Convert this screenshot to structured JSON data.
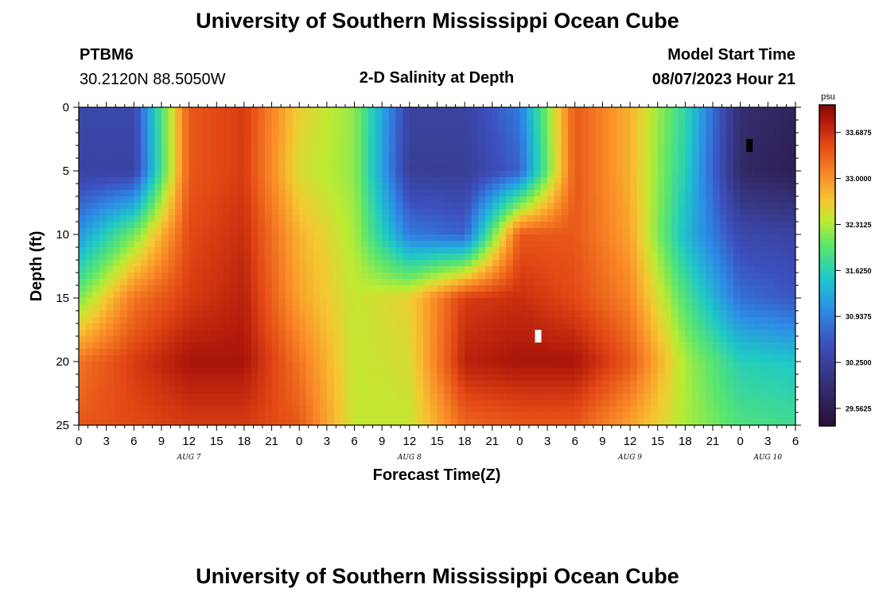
{
  "page": {
    "title_top": "University of Southern Mississippi Ocean Cube",
    "title_bottom": "University of Southern Mississippi Ocean Cube",
    "station_id": "PTBM6",
    "station_coords": "30.2120N  88.5050W",
    "plot_title": "2-D Salinity at Depth",
    "model_start_label": "Model Start Time",
    "model_start_value": "08/07/2023 Hour 21"
  },
  "chart_data": {
    "type": "heatmap",
    "title": "2-D Salinity at Depth",
    "xlabel": "Forecast Time(Z)",
    "ylabel": "Depth (ft)",
    "x_range_hours": [
      0,
      78
    ],
    "y_range_ft": [
      0,
      25
    ],
    "y_inverted": true,
    "x_tick_labels": [
      "0",
      "3",
      "6",
      "9",
      "12",
      "15",
      "18",
      "21",
      "0",
      "3",
      "6",
      "9",
      "12",
      "15",
      "18",
      "21",
      "0",
      "3",
      "6",
      "9",
      "12",
      "15",
      "18",
      "21",
      "0",
      "3",
      "6"
    ],
    "y_ticks": [
      0,
      5,
      10,
      15,
      20,
      25
    ],
    "day_labels": [
      {
        "label": "AUG 7",
        "hour": 12
      },
      {
        "label": "AUG 8",
        "hour": 36
      },
      {
        "label": "AUG 9",
        "hour": 60
      },
      {
        "label": "AUG 10",
        "hour": 75
      }
    ],
    "colorbar": {
      "unit": "psu",
      "range": [
        29.3,
        34.1
      ],
      "ticks": [
        33.6875,
        33.0,
        32.3125,
        31.625,
        30.9375,
        30.25,
        29.5625
      ],
      "tick_labels": [
        "33.6875",
        "33.0000",
        "32.3125",
        "31.6250",
        "30.9375",
        "30.2500",
        "29.5625"
      ]
    },
    "grid": {
      "times_hours": [
        0,
        6,
        12,
        18,
        24,
        30,
        36,
        42,
        48,
        54,
        60,
        66,
        72,
        78
      ],
      "depths_ft": [
        0,
        5,
        10,
        15,
        20,
        25
      ],
      "salinity_psu": [
        [
          30.4,
          30.4,
          33.4,
          33.6,
          32.6,
          32.2,
          30.3,
          30.3,
          30.9,
          33.4,
          32.8,
          31.7,
          29.9,
          29.7
        ],
        [
          30.3,
          30.3,
          33.4,
          33.6,
          32.5,
          32.2,
          30.2,
          30.2,
          30.7,
          33.4,
          32.8,
          31.6,
          29.8,
          29.6
        ],
        [
          31.1,
          32.1,
          33.5,
          33.7,
          32.8,
          32.3,
          30.9,
          30.7,
          33.4,
          33.4,
          32.9,
          31.4,
          30.4,
          30.3
        ],
        [
          32.1,
          33.2,
          33.6,
          33.8,
          32.9,
          32.4,
          32.6,
          33.6,
          33.7,
          33.5,
          33.1,
          31.9,
          30.8,
          30.6
        ],
        [
          33.2,
          33.6,
          33.9,
          33.9,
          33.2,
          32.4,
          32.5,
          33.8,
          33.9,
          33.9,
          33.4,
          32.3,
          31.6,
          31.5
        ],
        [
          33.4,
          33.5,
          33.6,
          33.6,
          33.4,
          32.4,
          32.4,
          33.3,
          33.4,
          33.4,
          32.9,
          32.3,
          31.9,
          31.8
        ]
      ]
    },
    "markers": [
      {
        "name": "min-marker",
        "hour": 73,
        "depth_ft": 3,
        "color": "#000000"
      },
      {
        "name": "max-marker",
        "hour": 50,
        "depth_ft": 18,
        "color": "#ffffff"
      }
    ]
  }
}
